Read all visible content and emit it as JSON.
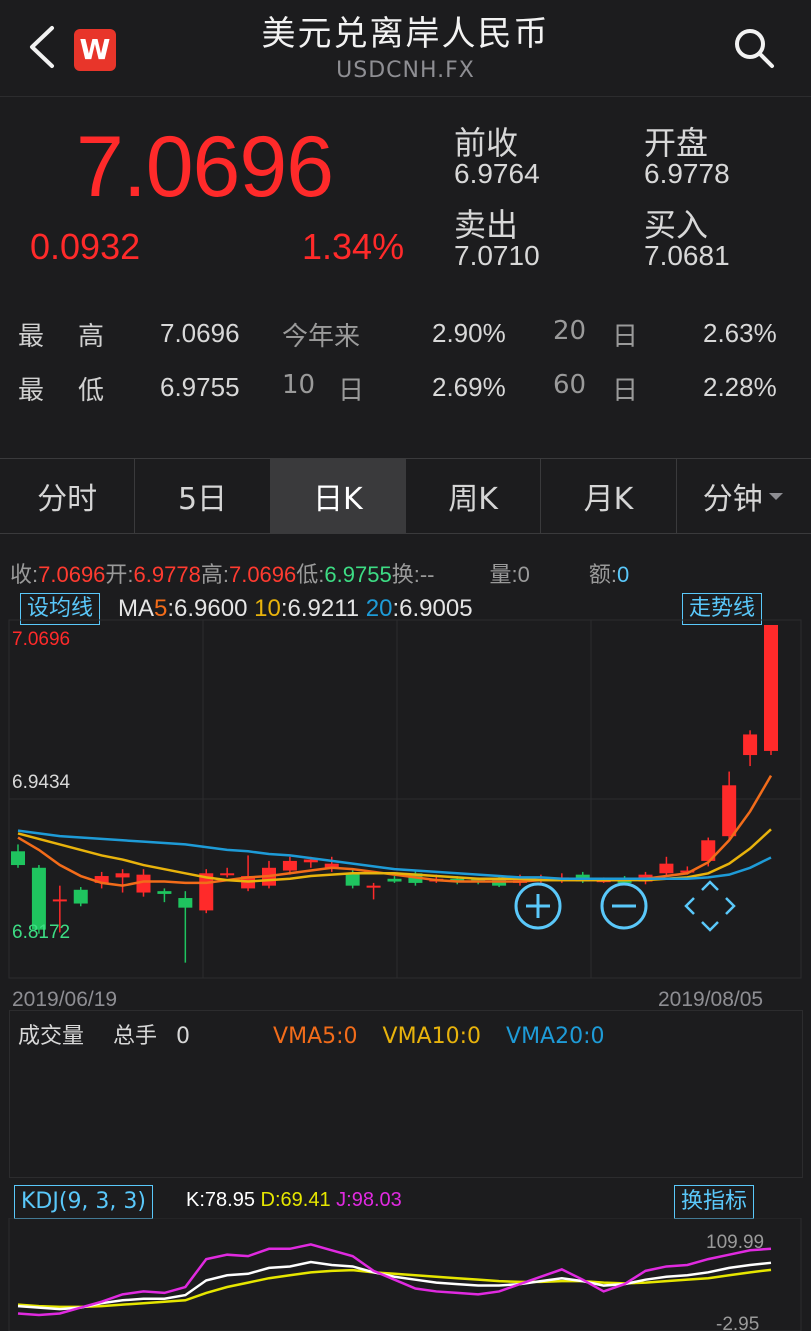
{
  "header": {
    "title": "美元兑离岸人民币",
    "subtitle": "USDCNH.FX",
    "logo_letter": "W"
  },
  "quote": {
    "price": "7.0696",
    "change": "0.0932",
    "change_pct": "1.34%",
    "prev_close_label": "前收",
    "prev_close": "6.9764",
    "open_label": "开盘",
    "open": "6.9778",
    "ask_label": "卖出",
    "ask": "7.0710",
    "bid_label": "买入",
    "bid": "7.0681"
  },
  "stats": {
    "high_label_1": "最",
    "high_label_2": "高",
    "high": "7.0696",
    "low_label_1": "最",
    "low_label_2": "低",
    "low": "6.9755",
    "ytd_label": "今年来",
    "ytd": "2.90%",
    "d10_label_1": "10",
    "d10_label_2": "日",
    "d10": "2.69%",
    "d20_label_1": "20",
    "d20_label_2": "日",
    "d20": "2.63%",
    "d60_label_1": "60",
    "d60_label_2": "日",
    "d60": "2.28%"
  },
  "tabs": [
    {
      "label": "分时"
    },
    {
      "label": "5日"
    },
    {
      "label": "日K",
      "active": true
    },
    {
      "label": "周K"
    },
    {
      "label": "月K"
    },
    {
      "label": "分钟"
    }
  ],
  "info_row": {
    "close_label": "收:",
    "close": "7.0696",
    "open_label": "开:",
    "open": "6.9778",
    "high_label": "高:",
    "high": "7.0696",
    "low_label": "低:",
    "low": "6.9755",
    "turnover_label": "换:",
    "turnover": "--",
    "volume_label": "量:",
    "volume": "0",
    "amount_label": "额:",
    "amount": "0"
  },
  "ma": {
    "set_button": "设均线",
    "trend_button": "走势线",
    "ma_label": "MA",
    "ma5_label": "5",
    "ma5": ":6.9600",
    "ma10_label": "10",
    "ma10": ":6.9211",
    "ma20_label": "20",
    "ma20": ":6.9005"
  },
  "price_axis": {
    "top": "7.0696",
    "mid": "6.9434",
    "bottom": "6.8172"
  },
  "dates": {
    "start": "2019/06/19",
    "end": "2019/08/05"
  },
  "volume": {
    "label": "成交量",
    "unit_label": "总手",
    "value": "0",
    "vma5": "VMA5:0",
    "vma10": "VMA10:0",
    "vma20": "VMA20:0"
  },
  "kdj": {
    "button": "KDJ(9, 3, 3)",
    "switch_button": "换指标",
    "k": "K:78.95",
    "d": "D:69.41",
    "j": "J:98.03",
    "axis_top": "109.99",
    "axis_bottom": "-2.95"
  },
  "colors": {
    "up": "#ff2a2a",
    "down": "#1fc45f",
    "ma5": "#f26c1a",
    "ma10": "#e8b30c",
    "ma20": "#1e9bd7",
    "accent": "#5ac8fa",
    "k": "#ffffff",
    "d": "#e6e600",
    "j": "#e02ae0"
  },
  "chart_data": {
    "type": "candlestick",
    "x_range": [
      "2019/06/19",
      "2019/08/05"
    ],
    "ylim": [
      6.8172,
      7.0696
    ],
    "candles": [
      {
        "o": 6.905,
        "c": 6.895,
        "h": 6.91,
        "l": 6.893
      },
      {
        "o": 6.893,
        "c": 6.848,
        "h": 6.895,
        "l": 6.845
      },
      {
        "o": 6.87,
        "c": 6.87,
        "h": 6.88,
        "l": 6.846
      },
      {
        "o": 6.877,
        "c": 6.867,
        "h": 6.879,
        "l": 6.865
      },
      {
        "o": 6.882,
        "c": 6.887,
        "h": 6.89,
        "l": 6.878
      },
      {
        "o": 6.886,
        "c": 6.889,
        "h": 6.892,
        "l": 6.875
      },
      {
        "o": 6.875,
        "c": 6.888,
        "h": 6.892,
        "l": 6.872
      },
      {
        "o": 6.876,
        "c": 6.874,
        "h": 6.878,
        "l": 6.868
      },
      {
        "o": 6.871,
        "c": 6.864,
        "h": 6.876,
        "l": 6.824
      },
      {
        "o": 6.862,
        "c": 6.889,
        "h": 6.892,
        "l": 6.86
      },
      {
        "o": 6.889,
        "c": 6.889,
        "h": 6.893,
        "l": 6.886
      },
      {
        "o": 6.878,
        "c": 6.887,
        "h": 6.902,
        "l": 6.876
      },
      {
        "o": 6.88,
        "c": 6.893,
        "h": 6.898,
        "l": 6.878
      },
      {
        "o": 6.891,
        "c": 6.898,
        "h": 6.901,
        "l": 6.888
      },
      {
        "o": 6.897,
        "c": 6.899,
        "h": 6.901,
        "l": 6.893
      },
      {
        "o": 6.893,
        "c": 6.896,
        "h": 6.901,
        "l": 6.89
      },
      {
        "o": 6.889,
        "c": 6.88,
        "h": 6.892,
        "l": 6.878
      },
      {
        "o": 6.88,
        "c": 6.88,
        "h": 6.882,
        "l": 6.87
      },
      {
        "o": 6.885,
        "c": 6.883,
        "h": 6.887,
        "l": 6.882
      },
      {
        "o": 6.889,
        "c": 6.882,
        "h": 6.891,
        "l": 6.88
      },
      {
        "o": 6.883,
        "c": 6.885,
        "h": 6.888,
        "l": 6.882
      },
      {
        "o": 6.885,
        "c": 6.883,
        "h": 6.887,
        "l": 6.881
      },
      {
        "o": 6.885,
        "c": 6.883,
        "h": 6.886,
        "l": 6.881
      },
      {
        "o": 6.885,
        "c": 6.88,
        "h": 6.887,
        "l": 6.879
      },
      {
        "o": 6.882,
        "c": 6.884,
        "h": 6.888,
        "l": 6.88
      },
      {
        "o": 6.884,
        "c": 6.885,
        "h": 6.888,
        "l": 6.882
      },
      {
        "o": 6.884,
        "c": 6.886,
        "h": 6.889,
        "l": 6.882
      },
      {
        "o": 6.888,
        "c": 6.883,
        "h": 6.89,
        "l": 6.882
      },
      {
        "o": 6.884,
        "c": 6.884,
        "h": 6.886,
        "l": 6.882
      },
      {
        "o": 6.885,
        "c": 6.882,
        "h": 6.887,
        "l": 6.881
      },
      {
        "o": 6.883,
        "c": 6.888,
        "h": 6.89,
        "l": 6.881
      },
      {
        "o": 6.889,
        "c": 6.896,
        "h": 6.901,
        "l": 6.887
      },
      {
        "o": 6.89,
        "c": 6.891,
        "h": 6.894,
        "l": 6.888
      },
      {
        "o": 6.898,
        "c": 6.913,
        "h": 6.915,
        "l": 6.894
      },
      {
        "o": 6.916,
        "c": 6.953,
        "h": 6.963,
        "l": 6.913
      },
      {
        "o": 6.975,
        "c": 6.99,
        "h": 6.993,
        "l": 6.967
      },
      {
        "o": 6.978,
        "c": 7.0696,
        "h": 7.0696,
        "l": 6.975
      }
    ],
    "series": [
      {
        "name": "MA5",
        "values": [
          6.915,
          6.906,
          6.895,
          6.887,
          6.882,
          6.88,
          6.883,
          6.883,
          6.882,
          6.882,
          6.884,
          6.886,
          6.887,
          6.889,
          6.891,
          6.893,
          6.892,
          6.89,
          6.888,
          6.886,
          6.884,
          6.883,
          6.883,
          6.883,
          6.883,
          6.884,
          6.884,
          6.884,
          6.884,
          6.884,
          6.885,
          6.887,
          6.889,
          6.897,
          6.913,
          6.934,
          6.96
        ]
      },
      {
        "name": "MA10",
        "values": [
          6.918,
          6.914,
          6.91,
          6.906,
          6.902,
          6.899,
          6.895,
          6.892,
          6.889,
          6.886,
          6.884,
          6.883,
          6.884,
          6.885,
          6.887,
          6.888,
          6.889,
          6.889,
          6.889,
          6.888,
          6.887,
          6.886,
          6.885,
          6.885,
          6.885,
          6.884,
          6.884,
          6.884,
          6.884,
          6.884,
          6.884,
          6.885,
          6.886,
          6.889,
          6.896,
          6.907,
          6.921
        ]
      },
      {
        "name": "MA20",
        "values": [
          6.92,
          6.918,
          6.916,
          6.915,
          6.914,
          6.913,
          6.912,
          6.911,
          6.91,
          6.908,
          6.906,
          6.905,
          6.903,
          6.902,
          6.9,
          6.898,
          6.896,
          6.894,
          6.892,
          6.891,
          6.89,
          6.889,
          6.888,
          6.887,
          6.886,
          6.886,
          6.885,
          6.885,
          6.885,
          6.885,
          6.885,
          6.885,
          6.885,
          6.886,
          6.888,
          6.893,
          6.9005
        ]
      }
    ],
    "kdj": {
      "ylim": [
        -2.95,
        109.99
      ],
      "K": [
        20,
        18,
        16,
        18,
        24,
        28,
        30,
        30,
        35,
        55,
        62,
        64,
        72,
        74,
        80,
        76,
        74,
        66,
        60,
        56,
        52,
        50,
        48,
        48,
        50,
        54,
        58,
        54,
        48,
        50,
        56,
        60,
        62,
        66,
        72,
        76,
        78.95
      ],
      "D": [
        22,
        20,
        19,
        19,
        20,
        22,
        24,
        26,
        28,
        38,
        46,
        52,
        58,
        62,
        66,
        68,
        69,
        66,
        64,
        62,
        60,
        58,
        56,
        54,
        53,
        53,
        54,
        54,
        52,
        51,
        52,
        54,
        56,
        58,
        62,
        66,
        69.41
      ],
      "J": [
        10,
        8,
        10,
        18,
        26,
        36,
        40,
        38,
        46,
        84,
        90,
        88,
        98,
        98,
        104,
        96,
        88,
        68,
        56,
        44,
        40,
        38,
        36,
        40,
        50,
        60,
        70,
        56,
        40,
        50,
        68,
        74,
        76,
        84,
        90,
        96,
        98.03
      ]
    }
  }
}
